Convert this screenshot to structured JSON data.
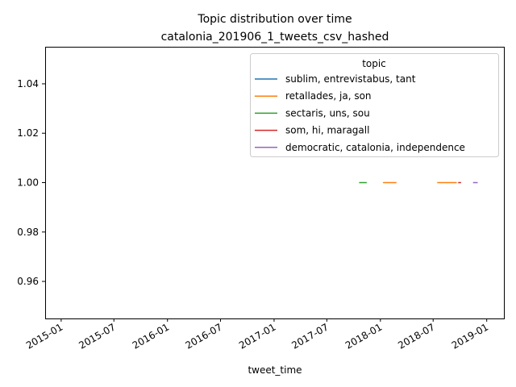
{
  "chart_data": {
    "type": "line",
    "title": "Topic distribution over time",
    "subtitle": "catalonia_201906_1_tweets_csv_hashed",
    "xlabel": "tweet_time",
    "ylabel": "",
    "x_range": [
      "2014-11-07",
      "2019-03-01"
    ],
    "ylim": [
      0.945,
      1.055
    ],
    "x_ticks": [
      "2015-01",
      "2015-07",
      "2016-01",
      "2016-07",
      "2017-01",
      "2017-07",
      "2018-01",
      "2018-07",
      "2019-01"
    ],
    "y_ticks": [
      0.96,
      0.98,
      1.0,
      1.02,
      1.04
    ],
    "y_tick_labels": [
      "0.96",
      "0.98",
      "1.00",
      "1.02",
      "1.04"
    ],
    "grid": false,
    "legend": {
      "title": "topic",
      "position": "top-right"
    },
    "series": [
      {
        "name": "sublim, entrevistabus, tant",
        "color": "#1f77b4",
        "segments": []
      },
      {
        "name": "retallades, ja, son",
        "color": "#ff7f0e",
        "segments": [
          {
            "x": [
              "2018-01-10",
              "2018-02-25"
            ],
            "y": 1.0
          },
          {
            "x": [
              "2018-07-15",
              "2018-09-20"
            ],
            "y": 1.0
          }
        ]
      },
      {
        "name": "sectaris, uns, sou",
        "color": "#2ca02c",
        "segments": [
          {
            "x": [
              "2017-10-20",
              "2017-11-15"
            ],
            "y": 1.0
          }
        ]
      },
      {
        "name": "som, hi, maragall",
        "color": "#d62728",
        "segments": [
          {
            "x": [
              "2018-09-25",
              "2018-10-05"
            ],
            "y": 1.0
          }
        ]
      },
      {
        "name": "democratic, catalonia, independence",
        "color": "#9467bd",
        "segments": [
          {
            "x": [
              "2018-11-15",
              "2018-12-01"
            ],
            "y": 1.0
          }
        ]
      }
    ]
  }
}
